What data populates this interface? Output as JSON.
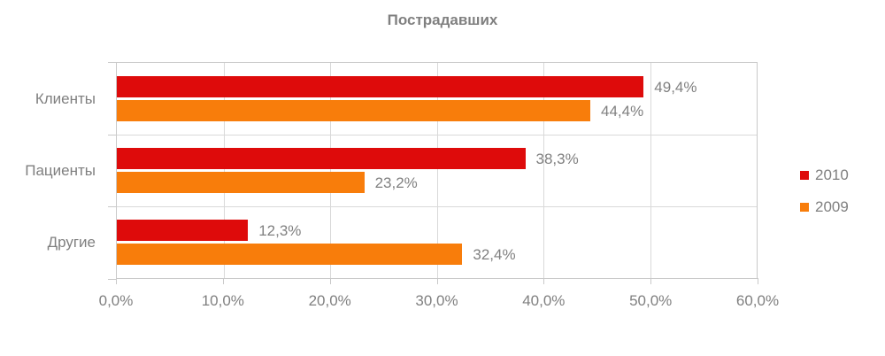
{
  "chart_data": {
    "type": "bar",
    "orientation": "horizontal",
    "title": "Пострадавших",
    "categories": [
      "Клиенты",
      "Пациенты",
      "Другие"
    ],
    "series": [
      {
        "name": "2010",
        "color": "#de0b0b",
        "values": [
          49.4,
          38.3,
          12.3
        ],
        "labels": [
          "49,4%",
          "38,3%",
          "12,3%"
        ]
      },
      {
        "name": "2009",
        "color": "#f87d0b",
        "values": [
          44.4,
          23.2,
          32.4
        ],
        "labels": [
          "44,4%",
          "23,2%",
          "32,4%"
        ]
      }
    ],
    "xlabel": "",
    "ylabel": "",
    "xlim": [
      0,
      60
    ],
    "x_ticks": [
      "0,0%",
      "10,0%",
      "20,0%",
      "30,0%",
      "40,0%",
      "50,0%",
      "60,0%"
    ],
    "x_tick_values": [
      0,
      10,
      20,
      30,
      40,
      50,
      60
    ],
    "grid": true,
    "legend_position": "right",
    "data_labels": true,
    "colors": {
      "grid": "#d9d9d9",
      "axis": "#c9c9c9",
      "text": "#808080",
      "background": "#ffffff"
    }
  }
}
